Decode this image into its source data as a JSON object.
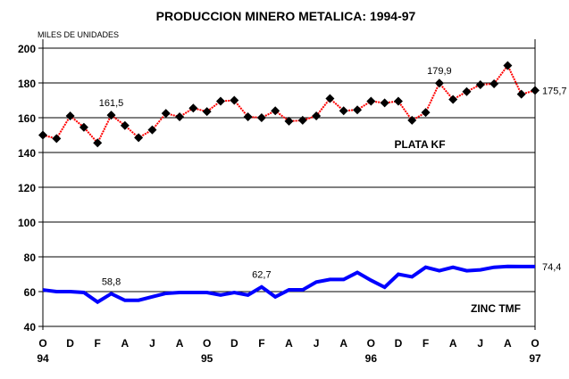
{
  "chart_data": {
    "type": "line",
    "title": "PRODUCCION MINERO METALICA: 1994-97",
    "ylabel": "MILES DE UNIDADES",
    "ylim": [
      40,
      200
    ],
    "yticks": [
      40,
      60,
      80,
      100,
      120,
      140,
      160,
      180,
      200
    ],
    "x_month_labels": [
      "O",
      "D",
      "F",
      "A",
      "J",
      "A",
      "O",
      "D",
      "F",
      "A",
      "J",
      "A",
      "O",
      "D",
      "F",
      "A",
      "J",
      "A",
      "O"
    ],
    "x_year_labels": [
      {
        "label": "94",
        "index": 0
      },
      {
        "label": "95",
        "index": 12
      },
      {
        "label": "96",
        "index": 24
      },
      {
        "label": "97",
        "index": 36
      }
    ],
    "grid": true,
    "series": [
      {
        "name": "PLATA KF",
        "color": "#ff0000",
        "marker": "diamond",
        "values": [
          150,
          148,
          161,
          154.5,
          145.5,
          161.5,
          155.5,
          148.5,
          153,
          162.5,
          160.5,
          165.5,
          163.5,
          169.5,
          170,
          160.5,
          160,
          164,
          158,
          158.5,
          161,
          171,
          164,
          164.5,
          169.5,
          168.5,
          169.5,
          158.5,
          163,
          179.9,
          170.5,
          175,
          179,
          179.5,
          190,
          173.5,
          175.7
        ]
      },
      {
        "name": "ZINC TMF",
        "color": "#0000ff",
        "marker": "none",
        "values": [
          61,
          60,
          60,
          59.5,
          54,
          58.8,
          55,
          55,
          57,
          59,
          59.5,
          59.5,
          59.5,
          58,
          59.5,
          58,
          62.7,
          57,
          61,
          61,
          65.5,
          67,
          67,
          71,
          66.5,
          62.5,
          70,
          68.5,
          74,
          72,
          74,
          72,
          72.5,
          74,
          74.5,
          74.4,
          74.4
        ]
      }
    ],
    "annotations": [
      {
        "series": 0,
        "index": 5,
        "text": "161,5"
      },
      {
        "series": 0,
        "index": 29,
        "text": "179,9"
      },
      {
        "series": 0,
        "index": 36,
        "text": "175,7"
      },
      {
        "series": 1,
        "index": 5,
        "text": "58,8"
      },
      {
        "series": 1,
        "index": 16,
        "text": "62,7"
      },
      {
        "series": 1,
        "index": 36,
        "text": "74,4"
      }
    ]
  }
}
